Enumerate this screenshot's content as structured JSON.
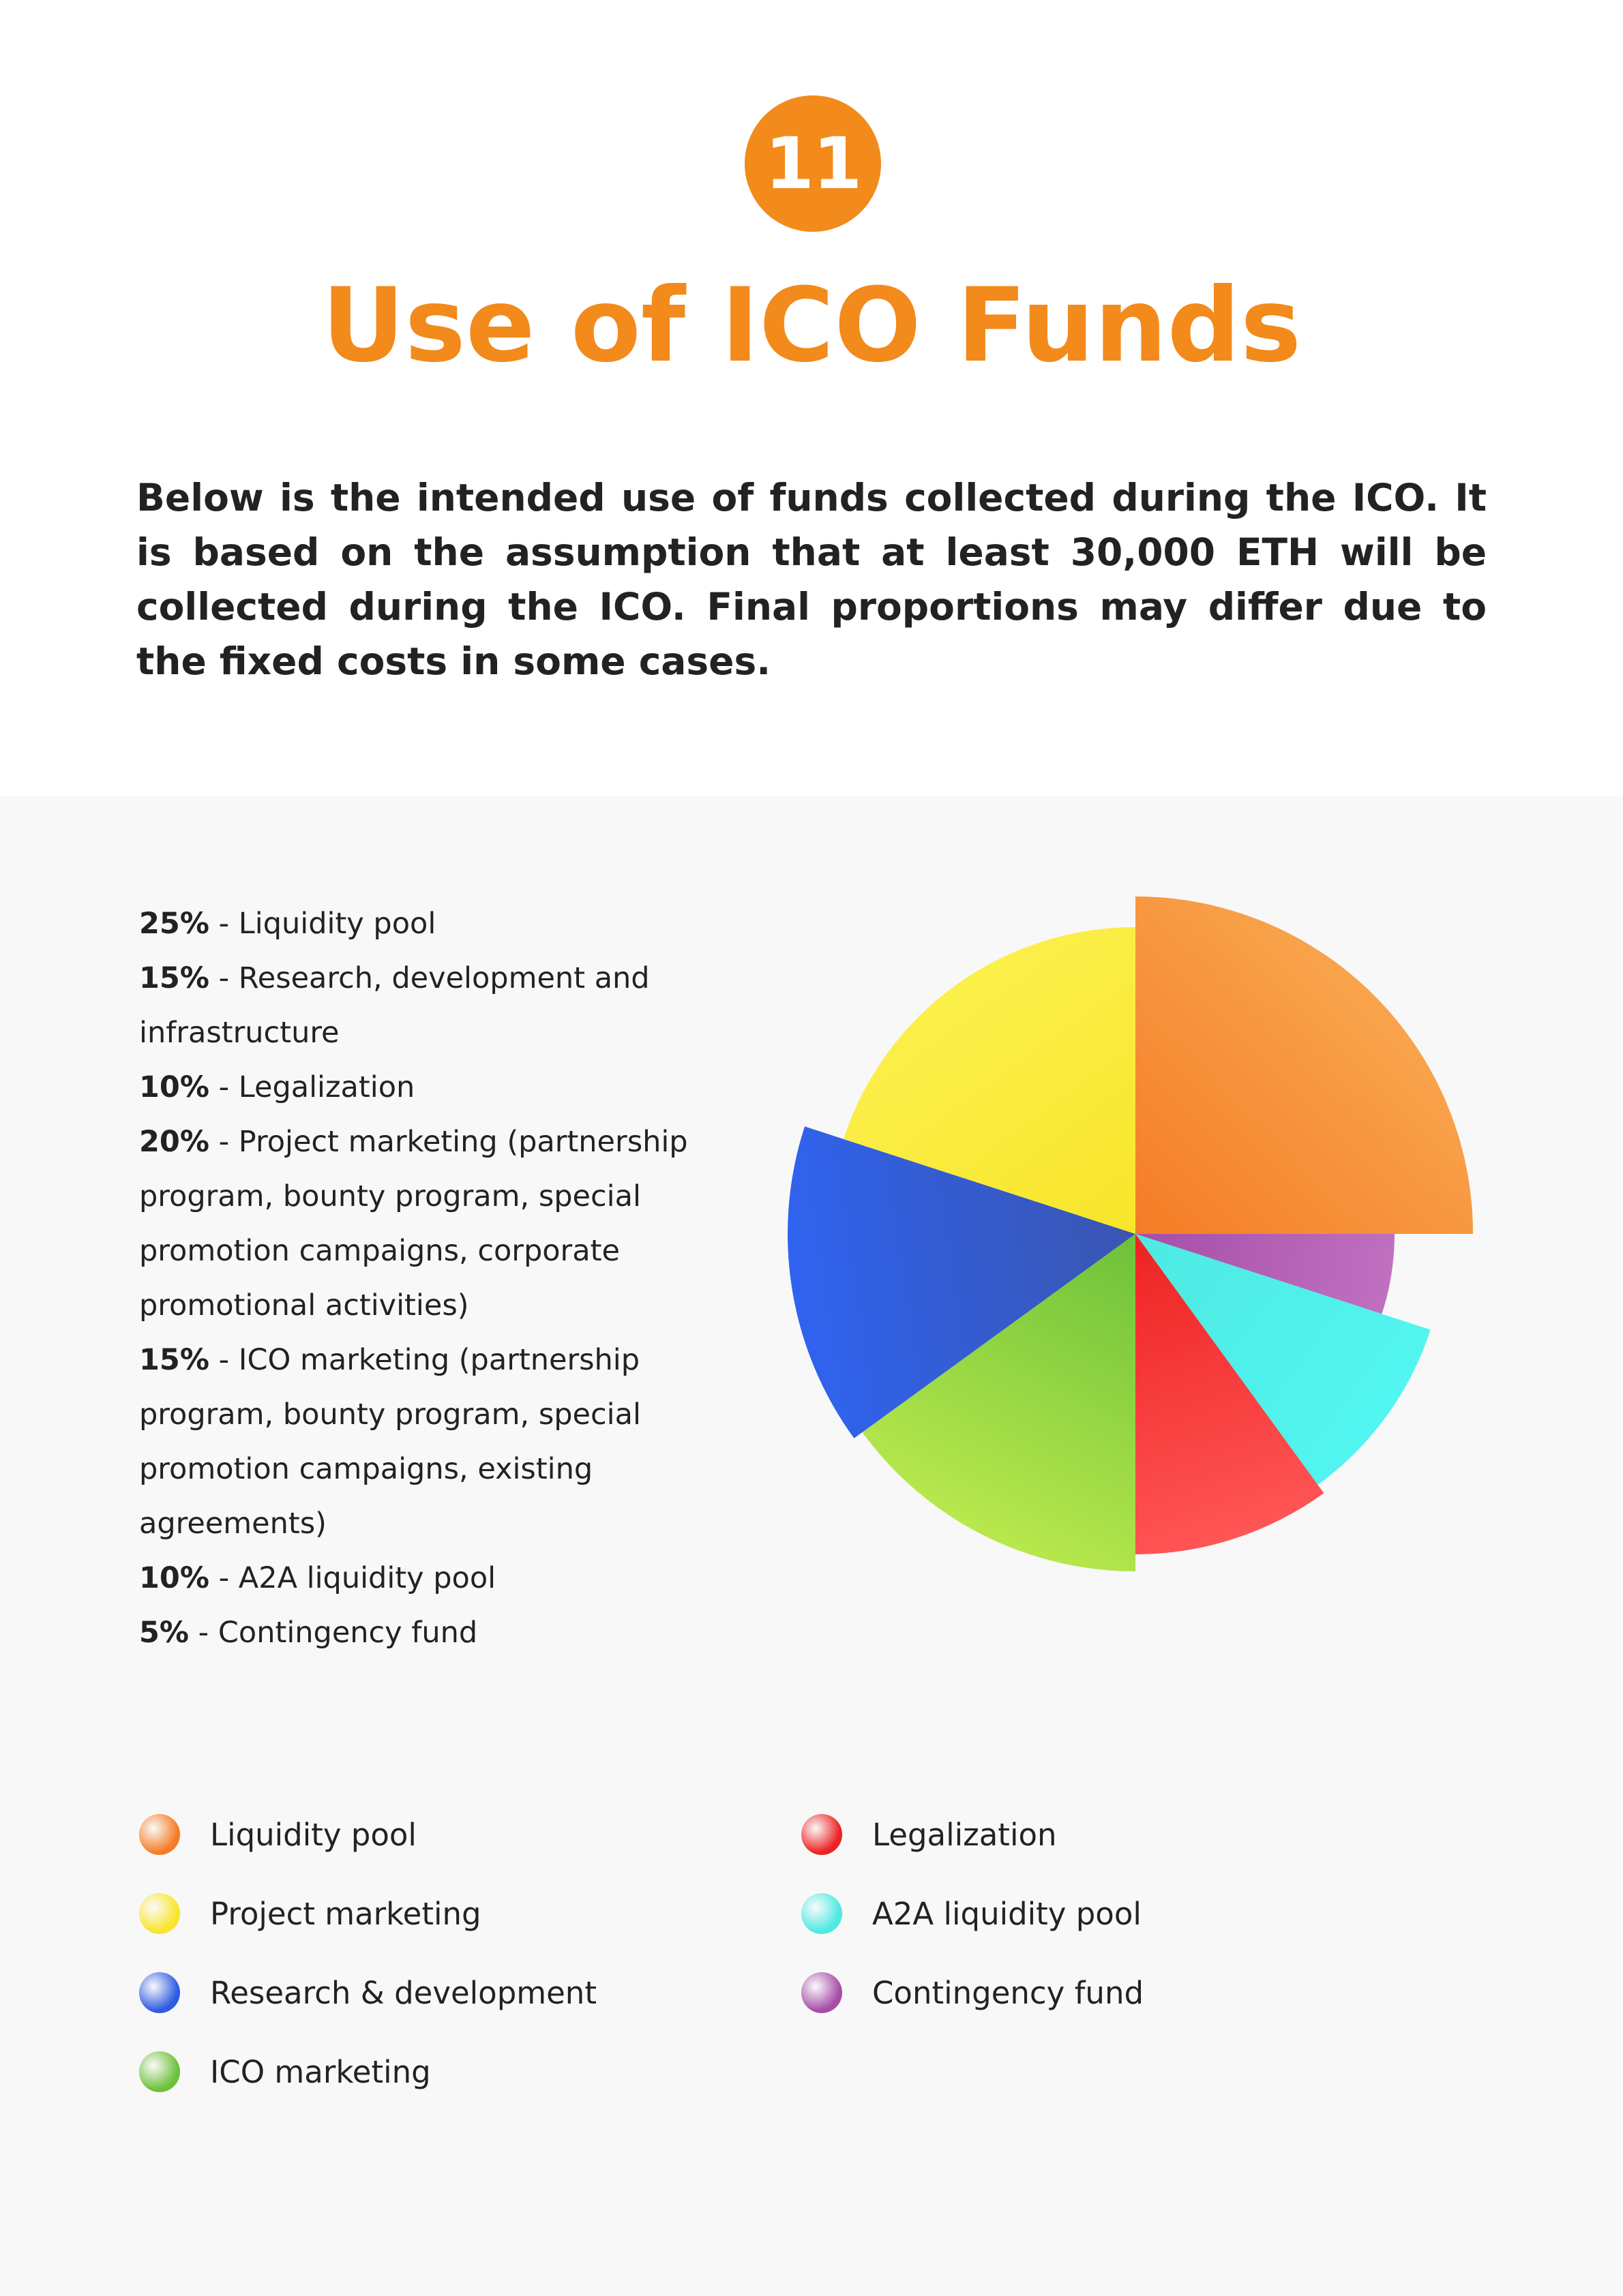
{
  "section": {
    "number": "11",
    "title": "Use of ICO Funds"
  },
  "intro": "Below is the intended use of funds collected during the ICO. It is based on the assumption that at least 30,000 ETH will be collected during the ICO. Final proportions may differ due to the fixed costs in some cases.",
  "allocations": [
    {
      "pct": "25%",
      "label": "Liquidity pool"
    },
    {
      "pct": "15%",
      "label": "Research, development and infrastructure"
    },
    {
      "pct": "10%",
      "label": "Legalization"
    },
    {
      "pct": "20%",
      "label": "Project marketing (partnership program, bounty program, special promotion campaigns, corporate promotional activities)"
    },
    {
      "pct": "15%",
      "label": "ICO marketing (partnership program, bounty program, special promotion campaigns, existing agreements)"
    },
    {
      "pct": "10%",
      "label": " A2A liquidity pool"
    },
    {
      "pct": "5%",
      "label": "Contingency fund"
    }
  ],
  "legend": [
    {
      "label": "Liquidity pool",
      "color": "#f57c26"
    },
    {
      "label": "Project marketing",
      "color": "#f8e52a"
    },
    {
      "label": "Research & development",
      "color": "#2f5be0"
    },
    {
      "label": "ICO marketing",
      "color": "#6cc13a"
    },
    {
      "label": "Legalization",
      "color": "#ee2222"
    },
    {
      "label": "A2A liquidity pool",
      "color": "#4ee9e2"
    },
    {
      "label": "Contingency fund",
      "color": "#a54ea8"
    }
  ],
  "chart_data": {
    "type": "pie",
    "title": "",
    "slices": [
      {
        "label": "Liquidity pool",
        "value": 25,
        "color": "#f57c26",
        "color_light": "#f8a44c"
      },
      {
        "label": "Contingency fund",
        "value": 5,
        "color": "#a54ea8",
        "color_light": "#c070c0"
      },
      {
        "label": "A2A liquidity pool",
        "value": 10,
        "color": "#4ee9e2",
        "color_light": "#52f5f0"
      },
      {
        "label": "Legalization",
        "value": 10,
        "color": "#ee2222",
        "color_light": "#ff5555"
      },
      {
        "label": "ICO marketing",
        "value": 15,
        "color": "#6cc13a",
        "color_light": "#b8e84c"
      },
      {
        "label": "Research & development",
        "value": 15,
        "color": "#3a55b0",
        "color_light": "#2f63f0"
      },
      {
        "label": "Project marketing",
        "value": 20,
        "color": "#f8e52a",
        "color_light": "#fbef4a"
      }
    ],
    "legend_position": "bottom"
  }
}
